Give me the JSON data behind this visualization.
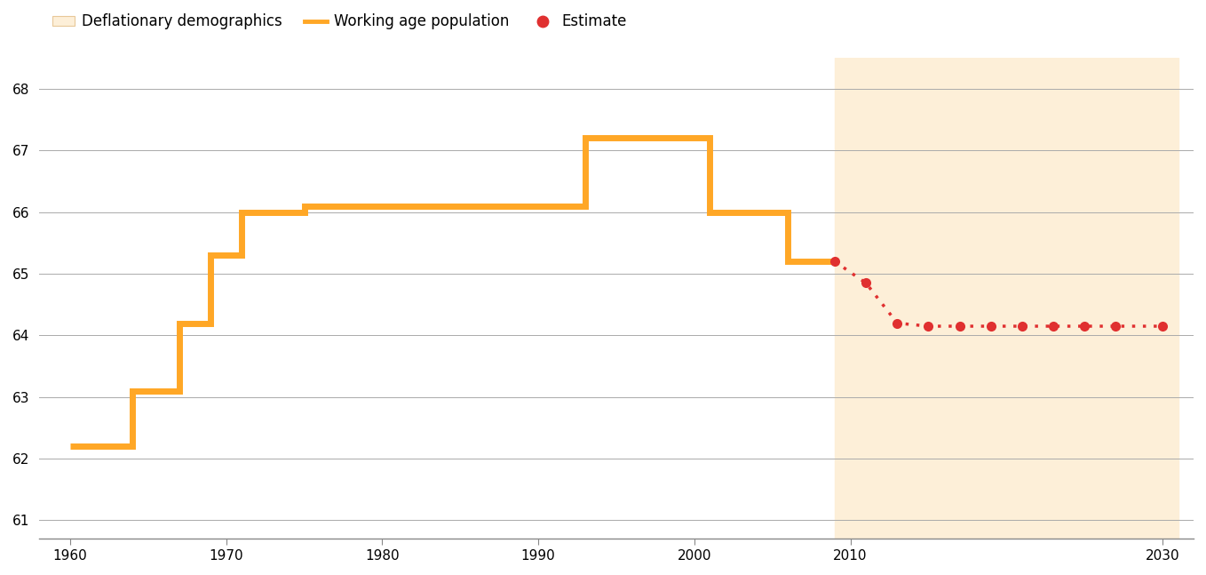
{
  "background_color": "#ffffff",
  "shading_region": [
    2009,
    2031
  ],
  "shading_color": "#fdefd8",
  "orange_line": {
    "x": [
      1960,
      1964,
      1964,
      1967,
      1967,
      1969,
      1969,
      1971,
      1971,
      1975,
      1975,
      1978,
      1978,
      1993,
      1993,
      2001,
      2001,
      2006,
      2006,
      2009
    ],
    "y": [
      62.2,
      62.2,
      63.1,
      63.1,
      64.2,
      64.2,
      65.3,
      65.3,
      66.0,
      66.0,
      66.1,
      66.1,
      66.1,
      66.1,
      67.2,
      67.2,
      66.0,
      66.0,
      65.2,
      65.2
    ],
    "color": "#FFA726",
    "linewidth": 5.0
  },
  "red_dotted_line": {
    "x": [
      2009,
      2011,
      2013,
      2015,
      2017,
      2019,
      2021,
      2023,
      2025,
      2027,
      2030
    ],
    "y": [
      65.2,
      64.85,
      64.2,
      64.15,
      64.15,
      64.15,
      64.15,
      64.15,
      64.15,
      64.15,
      64.15
    ],
    "color": "#e03030",
    "linewidth": 2.5,
    "markersize": 8
  },
  "ylim": [
    60.7,
    68.5
  ],
  "yticks": [
    61,
    62,
    63,
    64,
    65,
    66,
    67,
    68
  ],
  "xlim": [
    1958,
    2032
  ],
  "xticks": [
    1960,
    1970,
    1980,
    1990,
    2000,
    2010,
    2030
  ],
  "tick_fontsize": 11,
  "grid_color": "#aaaaaa",
  "grid_linewidth": 0.7,
  "legend": {
    "deflationary_label": "Deflationary demographics",
    "working_label": "Working age population",
    "estimate_label": "Estimate",
    "deflationary_color": "#fdefd8",
    "working_color": "#FFA726",
    "estimate_color": "#e03030"
  }
}
